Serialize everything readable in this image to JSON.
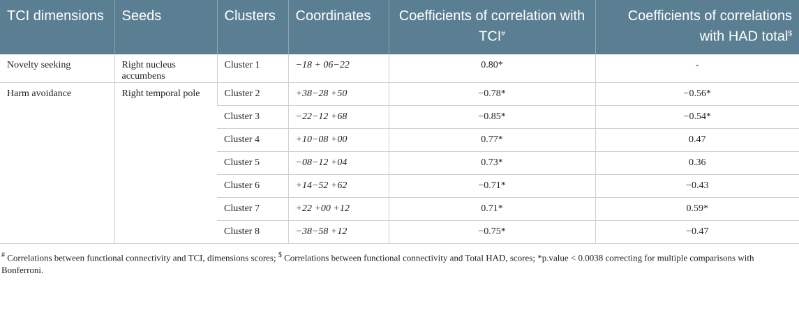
{
  "headers": {
    "dimensions": "TCI dimensions",
    "seeds": "Seeds",
    "clusters": "Clusters",
    "coordinates": "Coordinates",
    "tci_corr": "Coefficients of correlation with TCI",
    "tci_corr_mark": "#",
    "had_corr": "Coefficients of correlations with HAD total",
    "had_corr_mark": "$"
  },
  "rows": [
    {
      "dimension": "Novelty seeking",
      "seed": "Right nucleus accumbens",
      "cluster": "Cluster 1",
      "coordinates": "−18 + 06−22",
      "tci": "0.80*",
      "had": "-"
    },
    {
      "dimension": "Harm avoidance",
      "seed": "Right temporal pole",
      "cluster": "Cluster 2",
      "coordinates": "+38−28 +50",
      "tci": "−0.78*",
      "had": "−0.56*"
    },
    {
      "dimension": "",
      "seed": "",
      "cluster": "Cluster 3",
      "coordinates": "−22−12 +68",
      "tci": "−0.85*",
      "had": "−0.54*"
    },
    {
      "dimension": "",
      "seed": "",
      "cluster": "Cluster 4",
      "coordinates": "+10−08 +00",
      "tci": "0.77*",
      "had": "0.47"
    },
    {
      "dimension": "",
      "seed": "",
      "cluster": "Cluster 5",
      "coordinates": "−08−12 +04",
      "tci": "0.73*",
      "had": "0.36"
    },
    {
      "dimension": "",
      "seed": "",
      "cluster": "Cluster 6",
      "coordinates": "+14−52 +62",
      "tci": "−0.71*",
      "had": "−0.43"
    },
    {
      "dimension": "",
      "seed": "",
      "cluster": "Cluster 7",
      "coordinates": "+22 +00 +12",
      "tci": "0.71*",
      "had": "0.59*"
    },
    {
      "dimension": "",
      "seed": "",
      "cluster": "Cluster 8",
      "coordinates": "−38−58 +12",
      "tci": "−0.75*",
      "had": "−0.47"
    }
  ],
  "footnote": {
    "mark1": "#",
    "text1": " Correlations between functional connectivity and TCI, dimensions scores; ",
    "mark2": "$",
    "text2": " Correlations between functional connectivity and Total HAD, scores; *p.value < 0.0038 correcting for multiple comparisons with Bonferroni."
  }
}
